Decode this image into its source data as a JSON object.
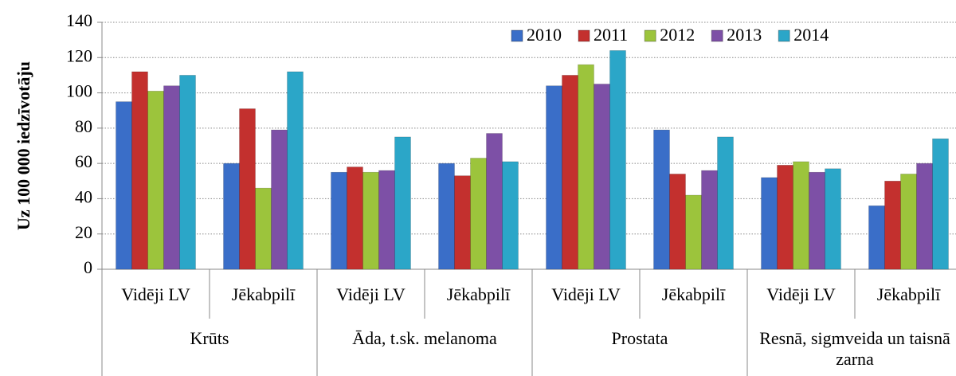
{
  "chart_data": {
    "type": "bar",
    "y_label": "Uz 100 000 iedzīvotāju",
    "categories": [
      "Vidēji LV",
      "Jēkabpilī",
      "Vidēji LV",
      "Jēkabpilī",
      "Vidēji LV",
      "Jēkabpilī",
      "Vidēji LV",
      "Jēkabpilī"
    ],
    "groups": [
      "Krūts",
      "Āda, t.sk. melanoma",
      "Prostata",
      "Resnā, sigmveida un taisnā zarna"
    ],
    "series": [
      {
        "name": "2010",
        "color": "#3a6ec8",
        "values": [
          95,
          60,
          55,
          60,
          104,
          79,
          52,
          36
        ]
      },
      {
        "name": "2011",
        "color": "#c3302e",
        "values": [
          112,
          91,
          58,
          53,
          110,
          54,
          59,
          50
        ]
      },
      {
        "name": "2012",
        "color": "#9cc43c",
        "values": [
          101,
          46,
          55,
          63,
          116,
          42,
          61,
          54
        ]
      },
      {
        "name": "2013",
        "color": "#7d50a6",
        "values": [
          104,
          79,
          56,
          77,
          105,
          56,
          55,
          60
        ]
      },
      {
        "name": "2014",
        "color": "#2ba6c8",
        "values": [
          110,
          112,
          75,
          61,
          124,
          75,
          57,
          74
        ]
      }
    ],
    "ylim": [
      0,
      140
    ],
    "yticks": [
      0,
      20,
      40,
      60,
      80,
      100,
      120,
      140
    ],
    "grid": true,
    "legend": "top-right"
  }
}
